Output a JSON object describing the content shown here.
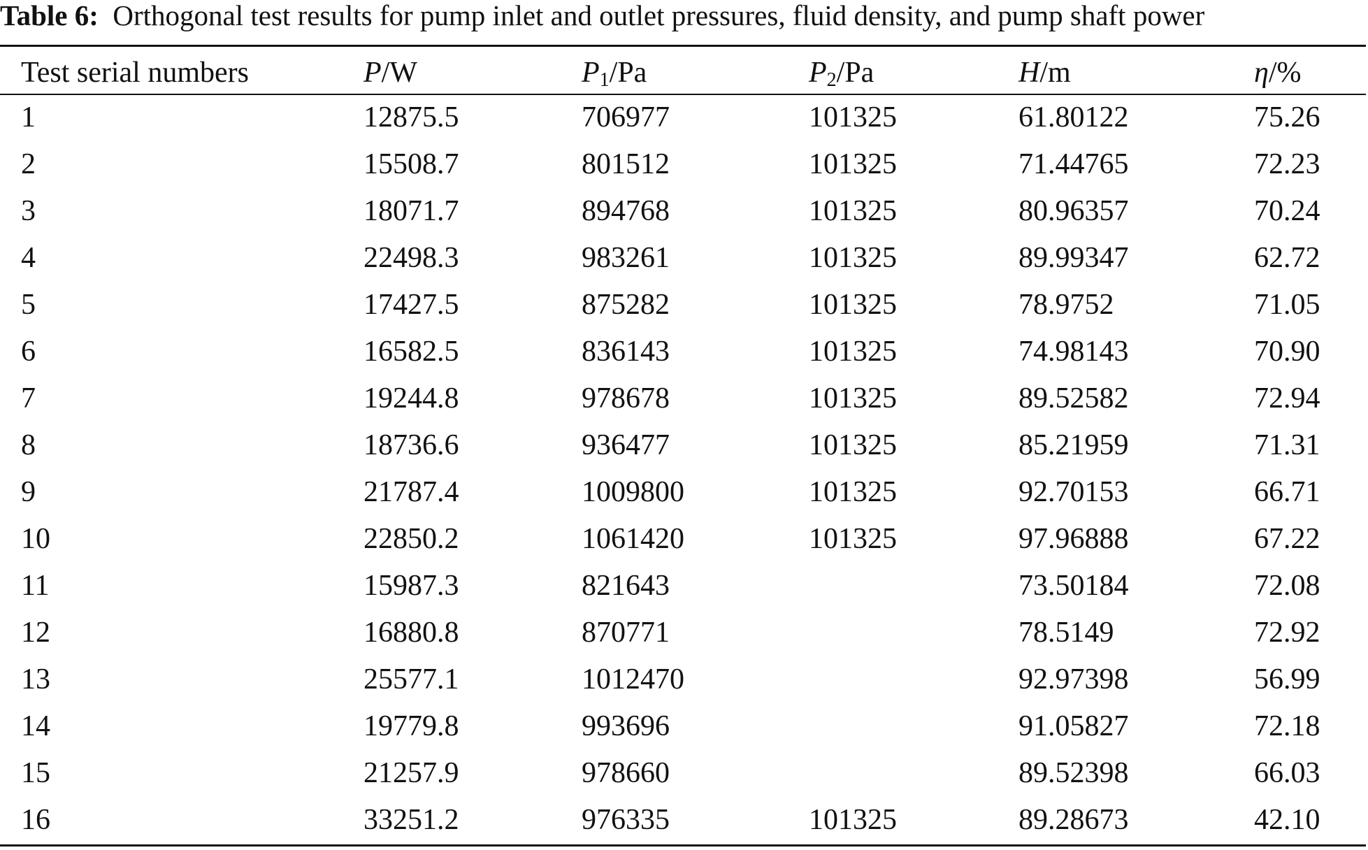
{
  "caption": {
    "label": "Table 6:",
    "text": "Orthogonal test results for pump inlet and outlet pressures, fluid density, and pump shaft power"
  },
  "table": {
    "headers": {
      "serial": "Test serial numbers",
      "P": {
        "symbol": "P",
        "unit": "/W"
      },
      "P1": {
        "symbol": "P",
        "sub": "1",
        "unit": "/Pa"
      },
      "P2": {
        "symbol": "P",
        "sub": "2",
        "unit": "/Pa"
      },
      "H": {
        "symbol": "H",
        "unit": "/m"
      },
      "eta": {
        "symbol": "η",
        "unit": "/%"
      }
    },
    "rows": [
      [
        "1",
        "12875.5",
        "706977",
        "101325",
        "61.80122",
        "75.26"
      ],
      [
        "2",
        "15508.7",
        "801512",
        "101325",
        "71.44765",
        "72.23"
      ],
      [
        "3",
        "18071.7",
        "894768",
        "101325",
        "80.96357",
        "70.24"
      ],
      [
        "4",
        "22498.3",
        "983261",
        "101325",
        "89.99347",
        "62.72"
      ],
      [
        "5",
        "17427.5",
        "875282",
        "101325",
        "78.9752",
        "71.05"
      ],
      [
        "6",
        "16582.5",
        "836143",
        "101325",
        "74.98143",
        "70.90"
      ],
      [
        "7",
        "19244.8",
        "978678",
        "101325",
        "89.52582",
        "72.94"
      ],
      [
        "8",
        "18736.6",
        "936477",
        "101325",
        "85.21959",
        "71.31"
      ],
      [
        "9",
        "21787.4",
        "1009800",
        "101325",
        "92.70153",
        "66.71"
      ],
      [
        "10",
        "22850.2",
        "1061420",
        "101325",
        "97.96888",
        "67.22"
      ],
      [
        "11",
        "15987.3",
        "821643",
        "",
        "73.50184",
        "72.08"
      ],
      [
        "12",
        "16880.8",
        "870771",
        "",
        "78.5149",
        "72.92"
      ],
      [
        "13",
        "25577.1",
        "1012470",
        "",
        "92.97398",
        "56.99"
      ],
      [
        "14",
        "19779.8",
        "993696",
        "",
        "91.05827",
        "72.18"
      ],
      [
        "15",
        "21257.9",
        "978660",
        "",
        "89.52398",
        "66.03"
      ],
      [
        "16",
        "33251.2",
        "976335",
        "101325",
        "89.28673",
        "42.10"
      ]
    ]
  }
}
